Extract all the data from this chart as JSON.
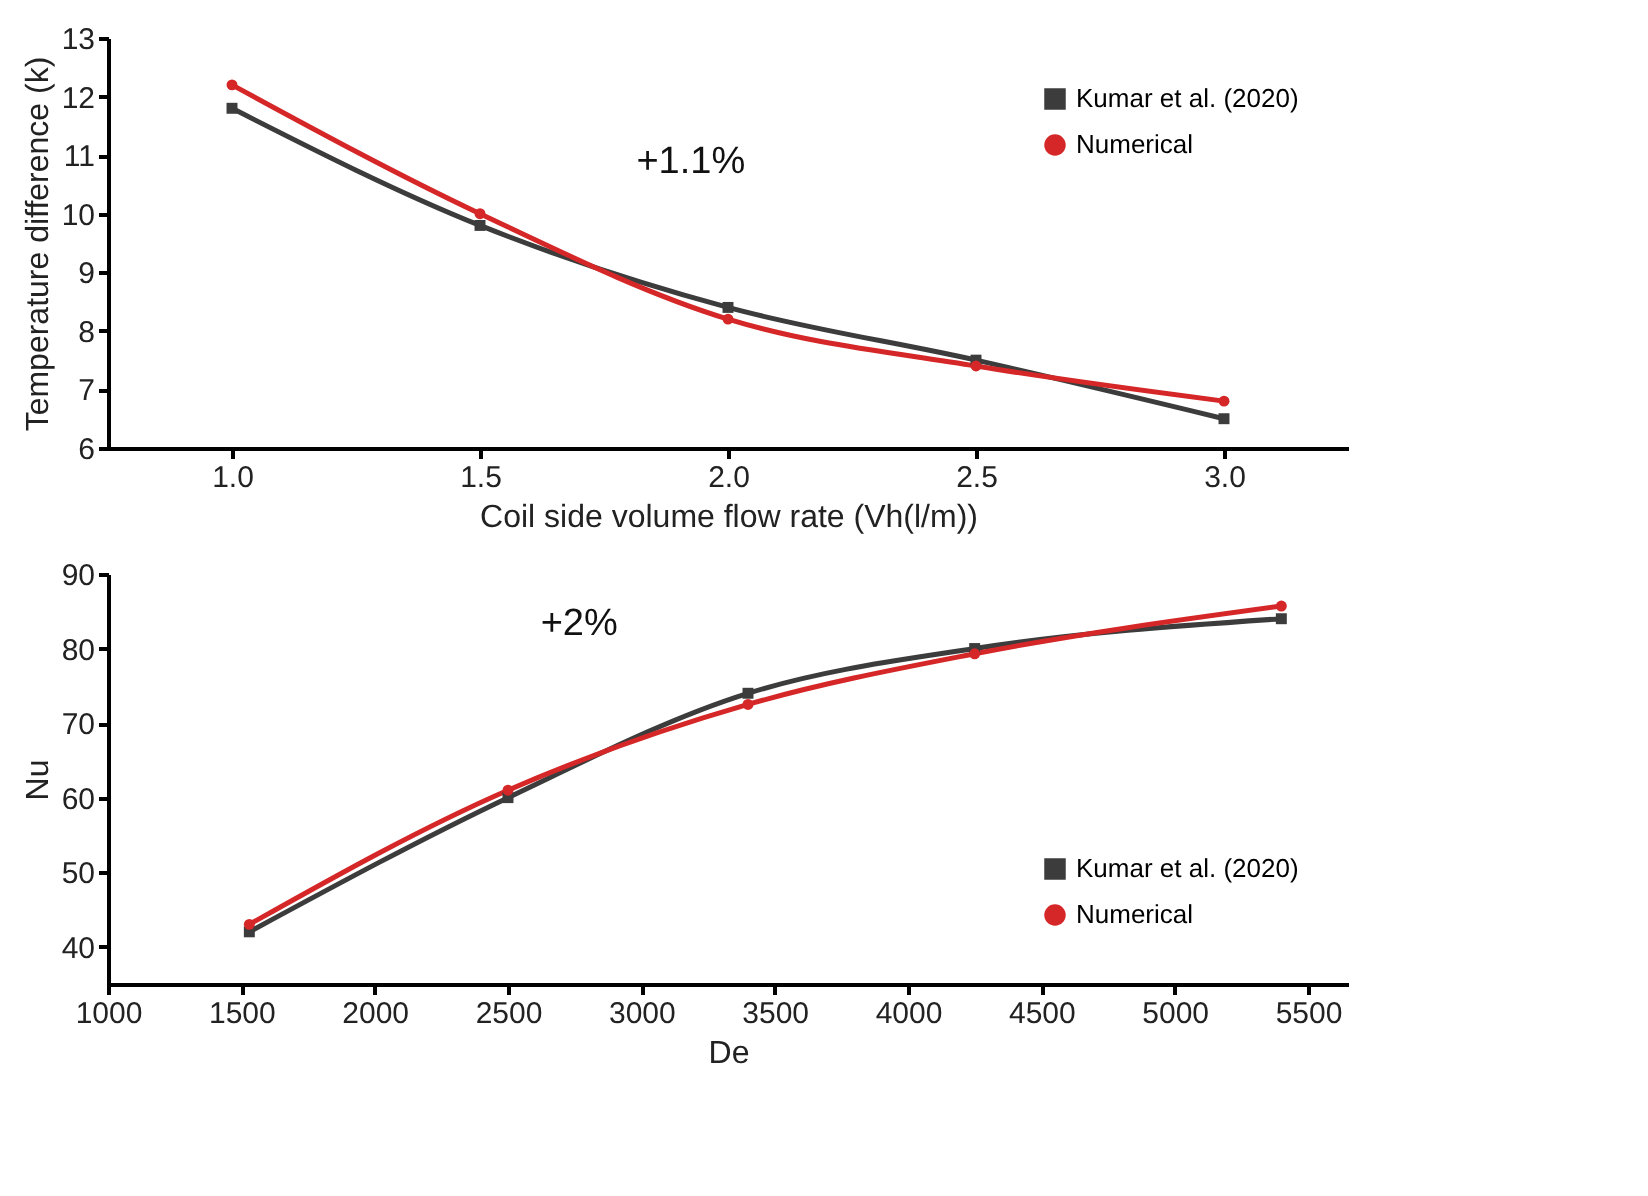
{
  "chart_data": [
    {
      "type": "line",
      "xlabel": "Coil side volume flow rate (Vh(l/m))",
      "ylabel": "Temperature difference (k)",
      "x": [
        1.0,
        1.5,
        2.0,
        2.5,
        3.0
      ],
      "series": [
        {
          "name": "Kumar et al. (2020)",
          "color": "#3c3c3c",
          "marker": "square",
          "values": [
            11.8,
            9.8,
            8.4,
            7.5,
            6.5
          ]
        },
        {
          "name": "Numerical",
          "color": "#d62728",
          "marker": "circle",
          "values": [
            12.2,
            10.0,
            8.2,
            7.4,
            6.8
          ]
        }
      ],
      "xlim": [
        0.75,
        3.25
      ],
      "xticks": [
        {
          "value": 1,
          "label": "1.0"
        },
        {
          "value": 1.5,
          "label": "1.5"
        },
        {
          "value": 2,
          "label": "2.0"
        },
        {
          "value": 2.5,
          "label": "2.5"
        },
        {
          "value": 3,
          "label": "3.0"
        }
      ],
      "ylim": [
        6,
        13
      ],
      "yticks": [
        6,
        7,
        8,
        9,
        10,
        11,
        12,
        13
      ],
      "annotations": [
        "+1.1%"
      ],
      "legend": "top right",
      "grid": false,
      "line_style": "solid"
    },
    {
      "type": "line",
      "xlabel": "De",
      "ylabel": "Nu",
      "x": [
        1530,
        2500,
        3400,
        4250,
        5400
      ],
      "series": [
        {
          "name": "Kumar et al. (2020)",
          "color": "#3c3c3c",
          "marker": "square",
          "values": [
            42,
            60,
            74,
            80,
            84
          ]
        },
        {
          "name": "Numerical",
          "color": "#d62728",
          "marker": "circle",
          "values": [
            43,
            61,
            72.5,
            79.3,
            85.7
          ]
        }
      ],
      "xlim": [
        1000,
        5650
      ],
      "xticks": [
        1000,
        1500,
        2000,
        2500,
        3000,
        3500,
        4000,
        4500,
        5000,
        5500
      ],
      "ylim": [
        35,
        90
      ],
      "yticks": [
        40,
        50,
        60,
        70,
        80,
        90
      ],
      "annotations": [
        "+2%"
      ],
      "legend": "bottom right",
      "grid": false,
      "line_style": "solid"
    }
  ]
}
